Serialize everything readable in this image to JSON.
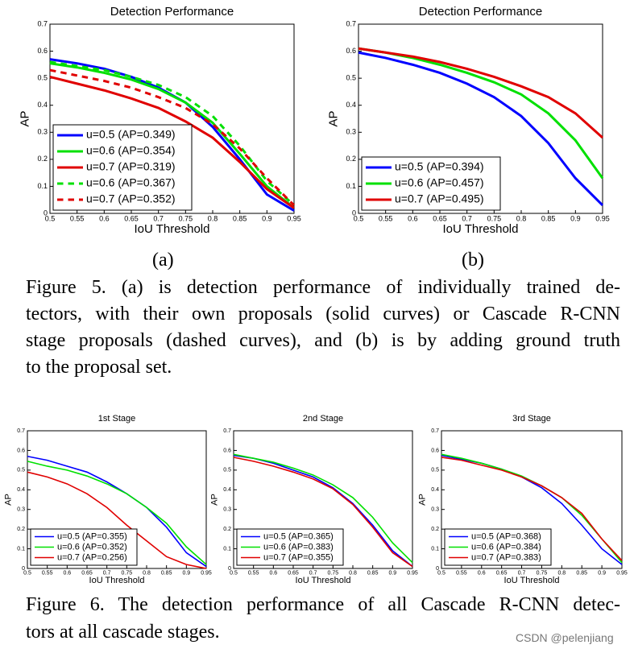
{
  "chart_data": [
    {
      "type": "line",
      "title": "Detection Performance",
      "xlabel": "IoU Threshold",
      "ylabel": "AP",
      "x": [
        0.5,
        0.55,
        0.6,
        0.65,
        0.7,
        0.75,
        0.8,
        0.85,
        0.9,
        0.95
      ],
      "xlim": [
        0.5,
        0.95
      ],
      "ylim": [
        0,
        0.7
      ],
      "xticks": [
        0.5,
        0.55,
        0.6,
        0.65,
        0.7,
        0.75,
        0.8,
        0.85,
        0.9,
        0.95
      ],
      "yticks": [
        0,
        0.1,
        0.2,
        0.3,
        0.4,
        0.5,
        0.6,
        0.7
      ],
      "legend": "lower left",
      "series": [
        {
          "name": "u=0.5 (AP=0.349)",
          "color": "#0000ff",
          "style": "solid",
          "values": [
            0.57,
            0.555,
            0.535,
            0.505,
            0.465,
            0.41,
            0.32,
            0.2,
            0.07,
            0.01
          ]
        },
        {
          "name": "u=0.6 (AP=0.354)",
          "color": "#00e000",
          "style": "solid",
          "values": [
            0.555,
            0.54,
            0.52,
            0.495,
            0.46,
            0.41,
            0.335,
            0.22,
            0.1,
            0.02
          ]
        },
        {
          "name": "u=0.7 (AP=0.319)",
          "color": "#e00000",
          "style": "solid",
          "values": [
            0.505,
            0.48,
            0.455,
            0.425,
            0.39,
            0.34,
            0.28,
            0.19,
            0.09,
            0.02
          ]
        },
        {
          "name": "u=0.6 (AP=0.367)",
          "color": "#00e000",
          "style": "dashed",
          "values": [
            0.56,
            0.545,
            0.53,
            0.505,
            0.475,
            0.43,
            0.36,
            0.25,
            0.12,
            0.03
          ]
        },
        {
          "name": "u=0.7 (AP=0.352)",
          "color": "#e00000",
          "style": "dashed",
          "values": [
            0.53,
            0.51,
            0.49,
            0.465,
            0.43,
            0.39,
            0.33,
            0.24,
            0.13,
            0.03
          ]
        }
      ]
    },
    {
      "type": "line",
      "title": "Detection Performance",
      "xlabel": "IoU Threshold",
      "ylabel": "AP",
      "x": [
        0.5,
        0.55,
        0.6,
        0.65,
        0.7,
        0.75,
        0.8,
        0.85,
        0.9,
        0.95
      ],
      "xlim": [
        0.5,
        0.95
      ],
      "ylim": [
        0,
        0.7
      ],
      "xticks": [
        0.5,
        0.55,
        0.6,
        0.65,
        0.7,
        0.75,
        0.8,
        0.85,
        0.9,
        0.95
      ],
      "yticks": [
        0,
        0.1,
        0.2,
        0.3,
        0.4,
        0.5,
        0.6,
        0.7
      ],
      "legend": "lower left",
      "series": [
        {
          "name": "u=0.5 (AP=0.394)",
          "color": "#0000ff",
          "style": "solid",
          "values": [
            0.595,
            0.575,
            0.55,
            0.52,
            0.48,
            0.43,
            0.36,
            0.26,
            0.13,
            0.03
          ]
        },
        {
          "name": "u=0.6 (AP=0.457)",
          "color": "#00e000",
          "style": "solid",
          "values": [
            0.61,
            0.595,
            0.575,
            0.55,
            0.52,
            0.485,
            0.44,
            0.37,
            0.27,
            0.13
          ]
        },
        {
          "name": "u=0.7 (AP=0.495)",
          "color": "#e00000",
          "style": "solid",
          "values": [
            0.61,
            0.595,
            0.58,
            0.56,
            0.535,
            0.505,
            0.47,
            0.43,
            0.37,
            0.28
          ]
        }
      ]
    },
    {
      "type": "line",
      "title": "1st Stage",
      "xlabel": "IoU Threshold",
      "ylabel": "AP",
      "x": [
        0.5,
        0.55,
        0.6,
        0.65,
        0.7,
        0.75,
        0.8,
        0.85,
        0.9,
        0.95
      ],
      "xlim": [
        0.5,
        0.95
      ],
      "ylim": [
        0,
        0.7
      ],
      "xticks": [
        0.5,
        0.55,
        0.6,
        0.65,
        0.7,
        0.75,
        0.8,
        0.85,
        0.9,
        0.95
      ],
      "yticks": [
        0,
        0.1,
        0.2,
        0.3,
        0.4,
        0.5,
        0.6,
        0.7
      ],
      "legend": "lower left",
      "series": [
        {
          "name": "u=0.5 (AP=0.355)",
          "color": "#0000ff",
          "style": "solid",
          "values": [
            0.57,
            0.55,
            0.52,
            0.49,
            0.44,
            0.38,
            0.31,
            0.21,
            0.08,
            0.01
          ]
        },
        {
          "name": "u=0.6 (AP=0.352)",
          "color": "#00e000",
          "style": "solid",
          "values": [
            0.545,
            0.52,
            0.5,
            0.47,
            0.43,
            0.38,
            0.31,
            0.23,
            0.11,
            0.02
          ]
        },
        {
          "name": "u=0.7 (AP=0.256)",
          "color": "#e00000",
          "style": "solid",
          "values": [
            0.49,
            0.465,
            0.43,
            0.38,
            0.31,
            0.22,
            0.14,
            0.06,
            0.02,
            0.0
          ]
        }
      ]
    },
    {
      "type": "line",
      "title": "2nd Stage",
      "xlabel": "IoU Threshold",
      "ylabel": "AP",
      "x": [
        0.5,
        0.55,
        0.6,
        0.65,
        0.7,
        0.75,
        0.8,
        0.85,
        0.9,
        0.95
      ],
      "xlim": [
        0.5,
        0.95
      ],
      "ylim": [
        0,
        0.7
      ],
      "xticks": [
        0.5,
        0.55,
        0.6,
        0.65,
        0.7,
        0.75,
        0.8,
        0.85,
        0.9,
        0.95
      ],
      "yticks": [
        0,
        0.1,
        0.2,
        0.3,
        0.4,
        0.5,
        0.6,
        0.7
      ],
      "legend": "lower left",
      "series": [
        {
          "name": "u=0.5 (AP=0.365)",
          "color": "#0000ff",
          "style": "solid",
          "values": [
            0.575,
            0.56,
            0.535,
            0.5,
            0.465,
            0.41,
            0.33,
            0.22,
            0.09,
            0.01
          ]
        },
        {
          "name": "u=0.6 (AP=0.383)",
          "color": "#00e000",
          "style": "solid",
          "values": [
            0.58,
            0.56,
            0.54,
            0.51,
            0.475,
            0.425,
            0.36,
            0.26,
            0.13,
            0.03
          ]
        },
        {
          "name": "u=0.7 (AP=0.355)",
          "color": "#e00000",
          "style": "solid",
          "values": [
            0.565,
            0.545,
            0.52,
            0.49,
            0.455,
            0.405,
            0.325,
            0.21,
            0.08,
            0.01
          ]
        }
      ]
    },
    {
      "type": "line",
      "title": "3rd Stage",
      "xlabel": "IoU Threshold",
      "ylabel": "AP",
      "x": [
        0.5,
        0.55,
        0.6,
        0.65,
        0.7,
        0.75,
        0.8,
        0.85,
        0.9,
        0.95
      ],
      "xlim": [
        0.5,
        0.95
      ],
      "ylim": [
        0,
        0.7
      ],
      "xticks": [
        0.5,
        0.55,
        0.6,
        0.65,
        0.7,
        0.75,
        0.8,
        0.85,
        0.9,
        0.95
      ],
      "yticks": [
        0,
        0.1,
        0.2,
        0.3,
        0.4,
        0.5,
        0.6,
        0.7
      ],
      "legend": "lower left",
      "series": [
        {
          "name": "u=0.5 (AP=0.368)",
          "color": "#0000ff",
          "style": "solid",
          "values": [
            0.575,
            0.555,
            0.535,
            0.505,
            0.465,
            0.41,
            0.33,
            0.22,
            0.1,
            0.02
          ]
        },
        {
          "name": "u=0.6 (AP=0.384)",
          "color": "#00e000",
          "style": "solid",
          "values": [
            0.58,
            0.56,
            0.535,
            0.505,
            0.47,
            0.42,
            0.36,
            0.27,
            0.15,
            0.03
          ]
        },
        {
          "name": "u=0.7 (AP=0.383)",
          "color": "#e00000",
          "style": "solid",
          "values": [
            0.565,
            0.55,
            0.525,
            0.5,
            0.465,
            0.42,
            0.36,
            0.28,
            0.15,
            0.04
          ]
        }
      ]
    }
  ],
  "panel_labels": [
    "(a)",
    "(b)"
  ],
  "figure5_caption": [
    "Figure 5. (a) is detection performance of individually trained de-",
    "tectors, with their own proposals (solid curves) or Cascade R-CNN",
    "stage proposals (dashed curves), and (b) is by adding ground truth",
    "to the proposal set."
  ],
  "figure6_caption": [
    "Figure 6. The detection performance of all Cascade R-CNN detec-",
    "tors at all cascade stages."
  ],
  "watermark": "CSDN @pelenjiang"
}
